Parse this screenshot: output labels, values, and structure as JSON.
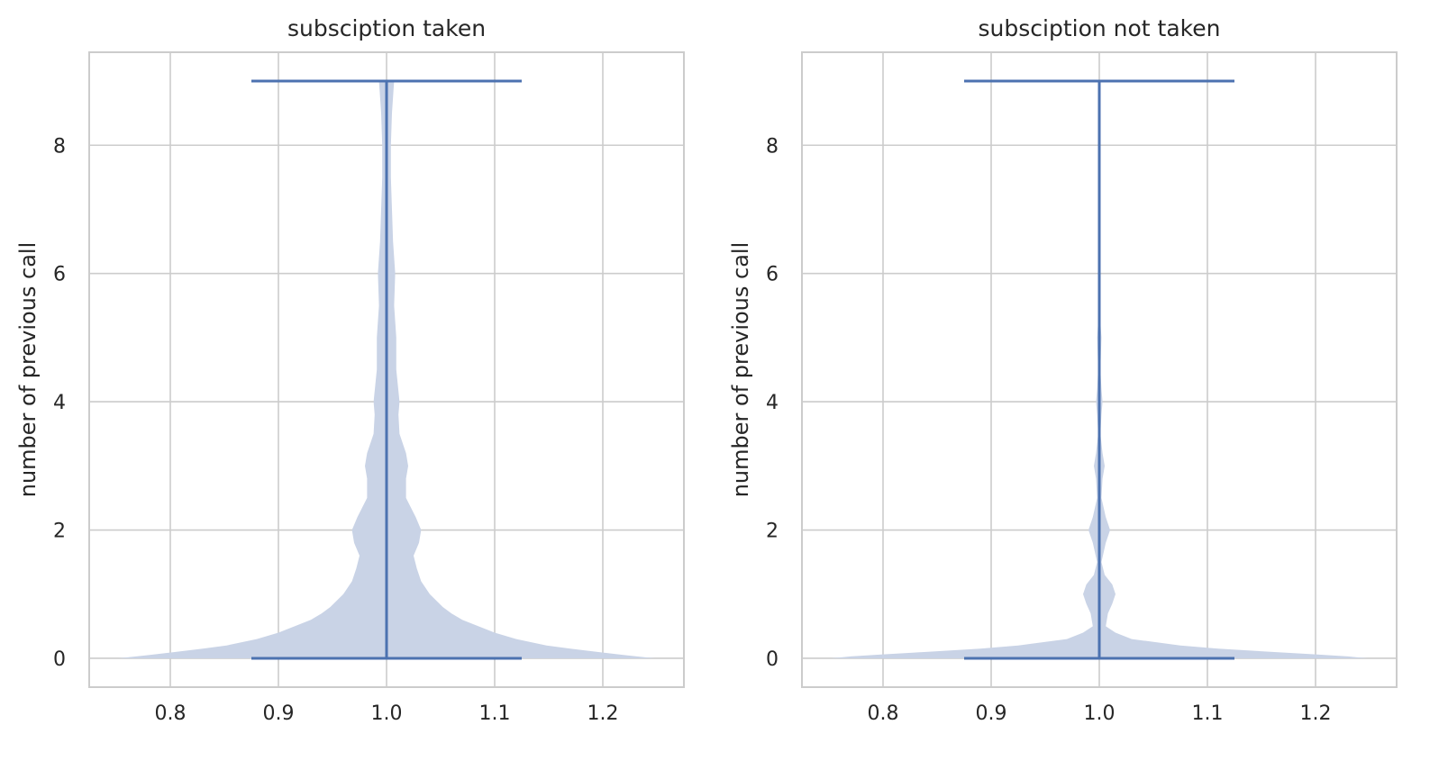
{
  "colors": {
    "violin_fill": "#c9d3e6",
    "stat_line": "#4c72b0",
    "grid": "#cccccc",
    "frame": "#cccccc",
    "text": "#262626"
  },
  "chart_data": [
    {
      "type": "violin",
      "title": "subsciption taken",
      "xlabel": "",
      "ylabel": "number of previous call",
      "xlim": [
        0.725,
        1.275
      ],
      "ylim": [
        -0.45,
        9.45
      ],
      "xticks": [
        0.8,
        0.9,
        1.0,
        1.1,
        1.2
      ],
      "xtick_labels": [
        "0.8",
        "0.9",
        "1.0",
        "1.1",
        "1.2"
      ],
      "yticks": [
        0,
        2,
        4,
        6,
        8
      ],
      "ytick_labels": [
        "0",
        "2",
        "4",
        "6",
        "8"
      ],
      "grid": true,
      "position": 1.0,
      "min": 0,
      "max": 9,
      "cap_width": 0.25,
      "density_halfwidth": [
        [
          0,
          0.248
        ],
        [
          0.05,
          0.22
        ],
        [
          0.1,
          0.195
        ],
        [
          0.15,
          0.17
        ],
        [
          0.2,
          0.148
        ],
        [
          0.3,
          0.12
        ],
        [
          0.4,
          0.1
        ],
        [
          0.5,
          0.085
        ],
        [
          0.6,
          0.07
        ],
        [
          0.7,
          0.06
        ],
        [
          0.8,
          0.052
        ],
        [
          0.9,
          0.046
        ],
        [
          1.0,
          0.04
        ],
        [
          1.2,
          0.032
        ],
        [
          1.4,
          0.028
        ],
        [
          1.6,
          0.025
        ],
        [
          1.8,
          0.03
        ],
        [
          2.0,
          0.032
        ],
        [
          2.2,
          0.027
        ],
        [
          2.5,
          0.018
        ],
        [
          2.8,
          0.018
        ],
        [
          3.0,
          0.02
        ],
        [
          3.2,
          0.018
        ],
        [
          3.5,
          0.012
        ],
        [
          3.8,
          0.011
        ],
        [
          4.0,
          0.012
        ],
        [
          4.5,
          0.009
        ],
        [
          5.0,
          0.009
        ],
        [
          5.5,
          0.007
        ],
        [
          6.0,
          0.008
        ],
        [
          6.5,
          0.006
        ],
        [
          7.0,
          0.005
        ],
        [
          7.5,
          0.004
        ],
        [
          8.0,
          0.004
        ],
        [
          8.5,
          0.005
        ],
        [
          9.0,
          0.007
        ]
      ]
    },
    {
      "type": "violin",
      "title": "subsciption not taken",
      "xlabel": "",
      "ylabel": "number of previous call",
      "xlim": [
        0.725,
        1.275
      ],
      "ylim": [
        -0.45,
        9.45
      ],
      "xticks": [
        0.8,
        0.9,
        1.0,
        1.1,
        1.2
      ],
      "xtick_labels": [
        "0.8",
        "0.9",
        "1.0",
        "1.1",
        "1.2"
      ],
      "yticks": [
        0,
        2,
        4,
        6,
        8
      ],
      "ytick_labels": [
        "0",
        "2",
        "4",
        "6",
        "8"
      ],
      "grid": true,
      "position": 1.0,
      "min": 0,
      "max": 9,
      "cap_width": 0.25,
      "density_halfwidth": [
        [
          0,
          0.248
        ],
        [
          0.03,
          0.23
        ],
        [
          0.06,
          0.2
        ],
        [
          0.1,
          0.16
        ],
        [
          0.15,
          0.11
        ],
        [
          0.2,
          0.075
        ],
        [
          0.3,
          0.03
        ],
        [
          0.4,
          0.015
        ],
        [
          0.5,
          0.006
        ],
        [
          0.7,
          0.008
        ],
        [
          0.85,
          0.012
        ],
        [
          1.0,
          0.015
        ],
        [
          1.15,
          0.012
        ],
        [
          1.3,
          0.005
        ],
        [
          1.5,
          0.002
        ],
        [
          1.8,
          0.006
        ],
        [
          2.0,
          0.01
        ],
        [
          2.2,
          0.006
        ],
        [
          2.5,
          0.002
        ],
        [
          2.8,
          0.003
        ],
        [
          3.0,
          0.005
        ],
        [
          3.2,
          0.003
        ],
        [
          3.5,
          0.001
        ],
        [
          3.8,
          0.002
        ],
        [
          4.0,
          0.003
        ],
        [
          4.2,
          0.002
        ],
        [
          4.5,
          0.001
        ],
        [
          5.0,
          0.002
        ],
        [
          5.5,
          0.0
        ],
        [
          9.0,
          0.0
        ]
      ]
    }
  ]
}
